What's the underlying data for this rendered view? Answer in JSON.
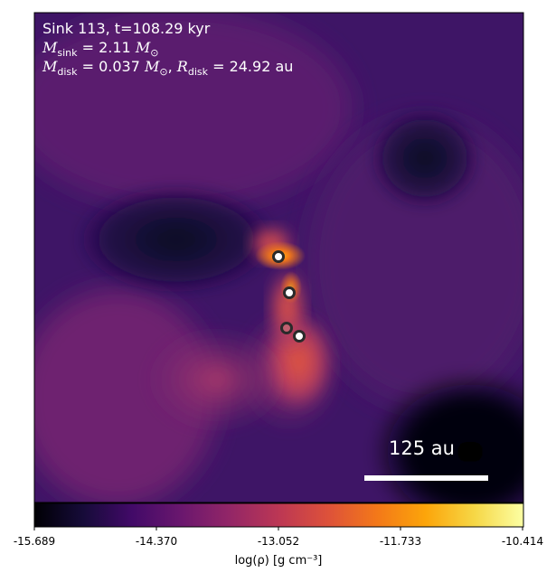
{
  "chart_data": {
    "type": "heatmap",
    "title_line1": "Sink 113, t=108.29 kyr",
    "title_line2_label": "sink",
    "title_line2_value": "2.11",
    "title_line3_label": "disk",
    "title_line3_value": "0.037",
    "title_line3_radius_label": "disk",
    "title_line3_radius_value": "24.92 au",
    "scalebar_label": "125 au",
    "colorbar": {
      "label": "log(ρ) [g cm⁻³]",
      "ticks": [
        "-15.689",
        "-14.370",
        "-13.052",
        "-11.733",
        "-10.414"
      ],
      "range": [
        -15.689,
        -10.414
      ],
      "colormap": "inferno"
    },
    "sinks": [
      {
        "name": "sink-1",
        "fill": "#ffffff"
      },
      {
        "name": "sink-2",
        "fill": "#ffffff"
      },
      {
        "name": "sink-3",
        "fill": "#c06070"
      },
      {
        "name": "sink-4",
        "fill": "#ffffff"
      }
    ]
  }
}
